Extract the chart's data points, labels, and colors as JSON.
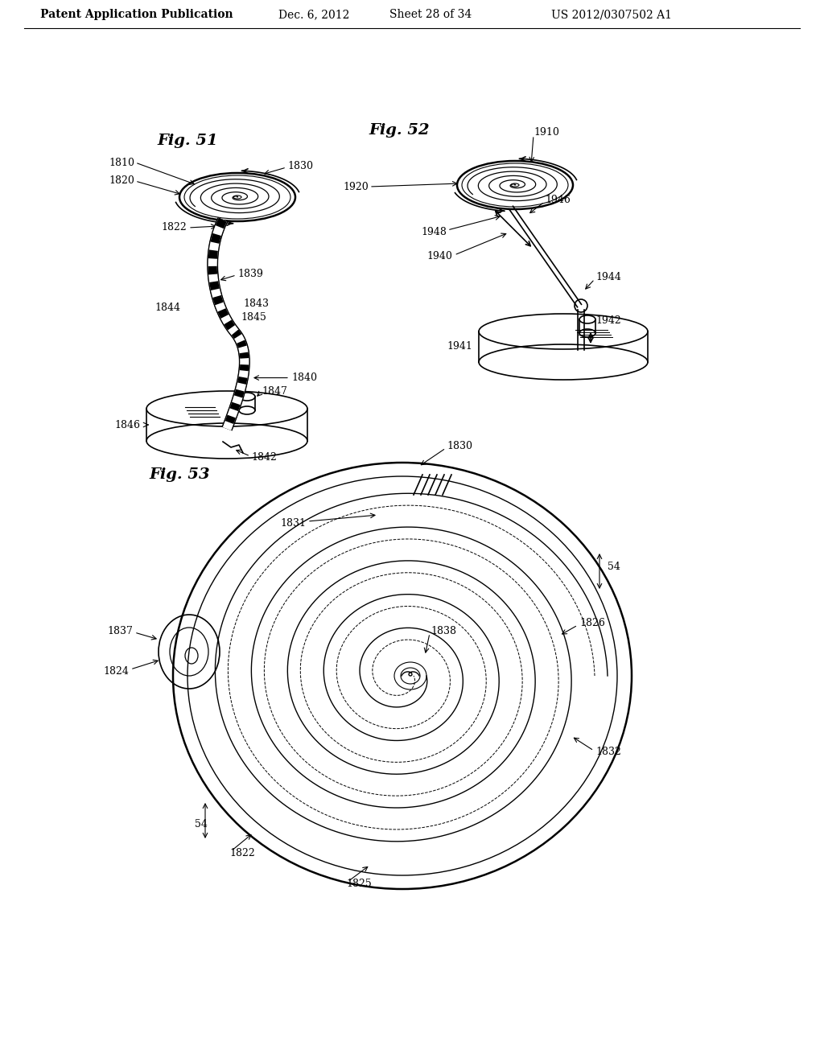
{
  "background_color": "#ffffff",
  "header_line1": "Patent Application Publication",
  "header_line2": "Dec. 6, 2012",
  "header_line3": "Sheet 28 of 34",
  "header_line4": "US 2012/0307502 A1",
  "fig51_title": "Fig. 51",
  "fig52_title": "Fig. 52",
  "fig53_title": "Fig. 53",
  "line_color": "#000000",
  "line_width": 1.2,
  "label_fontsize": 9,
  "title_fontsize": 14
}
